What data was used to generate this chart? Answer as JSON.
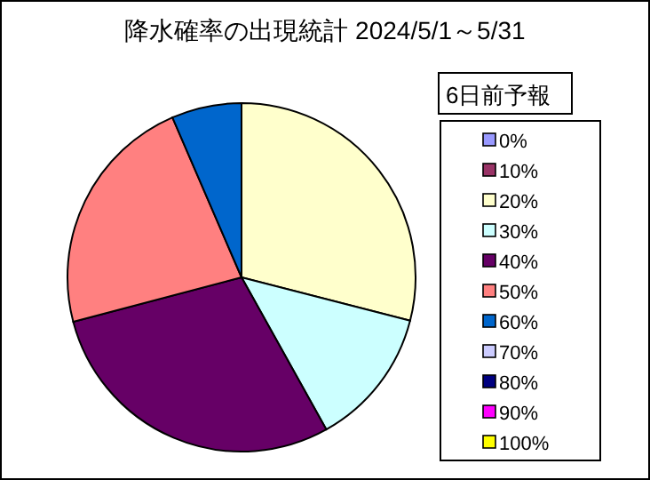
{
  "chart_data": {
    "type": "pie",
    "title": "降水確率の出現統計 2024/5/1～5/31",
    "legend_title": "6日前予報",
    "legend": "right",
    "categories": [
      "0%",
      "10%",
      "20%",
      "30%",
      "40%",
      "50%",
      "60%",
      "70%",
      "80%",
      "90%",
      "100%"
    ],
    "values": [
      0,
      0,
      29,
      12.9,
      29,
      22.6,
      6.5,
      0,
      0,
      0,
      0
    ],
    "colors": [
      "#9999ff",
      "#993366",
      "#ffffcc",
      "#ccffff",
      "#660066",
      "#ff8080",
      "#0066cc",
      "#ccccff",
      "#000080",
      "#ff00ff",
      "#ffff00"
    ]
  }
}
